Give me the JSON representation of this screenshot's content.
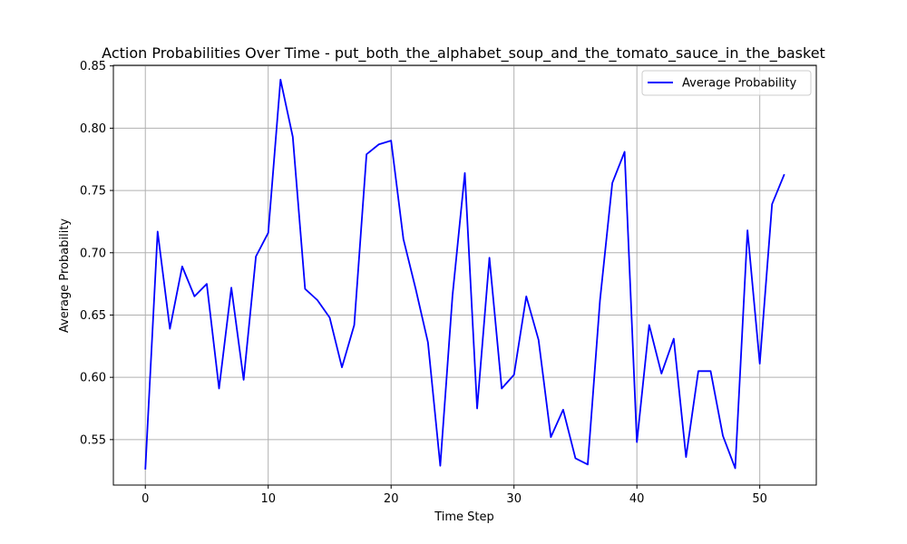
{
  "chart_data": {
    "type": "line",
    "title": "Action Probabilities Over Time - put_both_the_alphabet_soup_and_the_tomato_sauce_in_the_basket",
    "xlabel": "Time Step",
    "ylabel": "Average Probability",
    "xlim": [
      -2.6,
      54.6
    ],
    "ylim": [
      0.5135,
      0.8505
    ],
    "xticks": [
      0,
      10,
      20,
      30,
      40,
      50
    ],
    "yticks": [
      0.55,
      0.6,
      0.65,
      0.7,
      0.75,
      0.8,
      0.85
    ],
    "xtick_labels": [
      "0",
      "10",
      "20",
      "30",
      "40",
      "50"
    ],
    "ytick_labels": [
      "0.55",
      "0.60",
      "0.65",
      "0.70",
      "0.75",
      "0.80",
      "0.85"
    ],
    "grid": true,
    "legend_position": "top-right",
    "series": [
      {
        "name": "Average Probability",
        "color": "#0000ff",
        "x": [
          0,
          1,
          2,
          3,
          4,
          5,
          6,
          7,
          8,
          9,
          10,
          11,
          12,
          13,
          14,
          15,
          16,
          17,
          18,
          19,
          20,
          21,
          22,
          23,
          24,
          25,
          26,
          27,
          28,
          29,
          30,
          31,
          32,
          33,
          34,
          35,
          36,
          37,
          38,
          39,
          40,
          41,
          42,
          43,
          44,
          45,
          46,
          47,
          48,
          49,
          50,
          51,
          52
        ],
        "values": [
          0.526,
          0.717,
          0.639,
          0.689,
          0.665,
          0.675,
          0.591,
          0.672,
          0.598,
          0.697,
          0.716,
          0.839,
          0.793,
          0.671,
          0.662,
          0.648,
          0.608,
          0.642,
          0.779,
          0.787,
          0.79,
          0.711,
          0.671,
          0.628,
          0.529,
          0.666,
          0.764,
          0.575,
          0.696,
          0.591,
          0.602,
          0.665,
          0.63,
          0.552,
          0.574,
          0.535,
          0.53,
          0.662,
          0.756,
          0.781,
          0.548,
          0.642,
          0.603,
          0.631,
          0.536,
          0.605,
          0.605,
          0.553,
          0.527,
          0.718,
          0.611,
          0.739,
          0.763
        ]
      }
    ]
  }
}
